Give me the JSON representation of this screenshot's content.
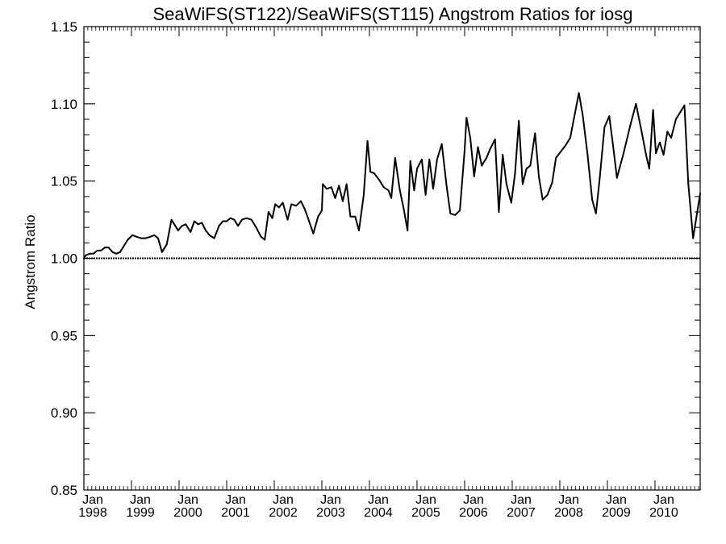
{
  "chart_data": {
    "type": "line",
    "title": "SeaWiFS(ST122)/SeaWiFS(ST115)  Angstrom Ratios for iosg",
    "xlabel": "",
    "ylabel": "Angstrom Ratio",
    "xlim": [
      1998.0,
      2010.95
    ],
    "ylim": [
      0.85,
      1.15
    ],
    "grid": false,
    "y_ticks": [
      {
        "value": 0.85,
        "label": "0.85"
      },
      {
        "value": 0.9,
        "label": "0.90"
      },
      {
        "value": 0.95,
        "label": "0.95"
      },
      {
        "value": 1.0,
        "label": "1.00"
      },
      {
        "value": 1.05,
        "label": "1.05"
      },
      {
        "value": 1.1,
        "label": "1.10"
      },
      {
        "value": 1.15,
        "label": "1.15"
      }
    ],
    "x_ticks": [
      {
        "value": 1998,
        "month": "Jan",
        "year": "1998"
      },
      {
        "value": 1999,
        "month": "Jan",
        "year": "1999"
      },
      {
        "value": 2000,
        "month": "Jan",
        "year": "2000"
      },
      {
        "value": 2001,
        "month": "Jan",
        "year": "2001"
      },
      {
        "value": 2002,
        "month": "Jan",
        "year": "2002"
      },
      {
        "value": 2003,
        "month": "Jan",
        "year": "2003"
      },
      {
        "value": 2004,
        "month": "Jan",
        "year": "2004"
      },
      {
        "value": 2005,
        "month": "Jan",
        "year": "2005"
      },
      {
        "value": 2006,
        "month": "Jan",
        "year": "2006"
      },
      {
        "value": 2007,
        "month": "Jan",
        "year": "2007"
      },
      {
        "value": 2008,
        "month": "Jan",
        "year": "2008"
      },
      {
        "value": 2009,
        "month": "Jan",
        "year": "2009"
      },
      {
        "value": 2010,
        "month": "Jan",
        "year": "2010"
      }
    ],
    "reference_line": {
      "y": 1.0,
      "style": "dotted"
    },
    "series": [
      {
        "color": "#000000",
        "points": [
          [
            1998.0,
            1.0
          ],
          [
            1998.04,
            1.002
          ],
          [
            1998.12,
            1.003
          ],
          [
            1998.2,
            1.003
          ],
          [
            1998.28,
            1.005
          ],
          [
            1998.36,
            1.005
          ],
          [
            1998.44,
            1.007
          ],
          [
            1998.52,
            1.007
          ],
          [
            1998.6,
            1.004
          ],
          [
            1998.68,
            1.003
          ],
          [
            1998.76,
            1.004
          ],
          [
            1998.84,
            1.008
          ],
          [
            1998.92,
            1.012
          ],
          [
            1999.02,
            1.015
          ],
          [
            1999.1,
            1.014
          ],
          [
            1999.2,
            1.013
          ],
          [
            1999.3,
            1.013
          ],
          [
            1999.4,
            1.014
          ],
          [
            1999.48,
            1.015
          ],
          [
            1999.56,
            1.013
          ],
          [
            1999.64,
            1.004
          ],
          [
            1999.74,
            1.009
          ],
          [
            1999.84,
            1.025
          ],
          [
            1999.9,
            1.022
          ],
          [
            1999.98,
            1.018
          ],
          [
            2000.06,
            1.021
          ],
          [
            2000.14,
            1.022
          ],
          [
            2000.24,
            1.017
          ],
          [
            2000.32,
            1.024
          ],
          [
            2000.4,
            1.022
          ],
          [
            2000.48,
            1.023
          ],
          [
            2000.56,
            1.018
          ],
          [
            2000.64,
            1.015
          ],
          [
            2000.74,
            1.013
          ],
          [
            2000.84,
            1.021
          ],
          [
            2000.92,
            1.024
          ],
          [
            2001.0,
            1.024
          ],
          [
            2001.08,
            1.026
          ],
          [
            2001.16,
            1.025
          ],
          [
            2001.24,
            1.021
          ],
          [
            2001.32,
            1.025
          ],
          [
            2001.42,
            1.026
          ],
          [
            2001.52,
            1.025
          ],
          [
            2001.62,
            1.02
          ],
          [
            2001.72,
            1.014
          ],
          [
            2001.8,
            1.012
          ],
          [
            2001.88,
            1.03
          ],
          [
            2001.96,
            1.026
          ],
          [
            2002.02,
            1.035
          ],
          [
            2002.1,
            1.033
          ],
          [
            2002.18,
            1.036
          ],
          [
            2002.28,
            1.025
          ],
          [
            2002.36,
            1.035
          ],
          [
            2002.46,
            1.034
          ],
          [
            2002.56,
            1.037
          ],
          [
            2002.64,
            1.032
          ],
          [
            2002.72,
            1.025
          ],
          [
            2002.82,
            1.016
          ],
          [
            2002.92,
            1.027
          ],
          [
            2003.0,
            1.031
          ],
          [
            2003.02,
            1.048
          ],
          [
            2003.1,
            1.045
          ],
          [
            2003.2,
            1.046
          ],
          [
            2003.28,
            1.039
          ],
          [
            2003.36,
            1.047
          ],
          [
            2003.44,
            1.037
          ],
          [
            2003.52,
            1.048
          ],
          [
            2003.6,
            1.027
          ],
          [
            2003.7,
            1.027
          ],
          [
            2003.78,
            1.018
          ],
          [
            2003.88,
            1.041
          ],
          [
            2003.96,
            1.076
          ],
          [
            2004.02,
            1.056
          ],
          [
            2004.1,
            1.055
          ],
          [
            2004.2,
            1.051
          ],
          [
            2004.3,
            1.046
          ],
          [
            2004.4,
            1.044
          ],
          [
            2004.46,
            1.039
          ],
          [
            2004.54,
            1.065
          ],
          [
            2004.64,
            1.044
          ],
          [
            2004.72,
            1.032
          ],
          [
            2004.8,
            1.018
          ],
          [
            2004.86,
            1.063
          ],
          [
            2004.94,
            1.044
          ],
          [
            2005.0,
            1.058
          ],
          [
            2005.1,
            1.064
          ],
          [
            2005.18,
            1.041
          ],
          [
            2005.26,
            1.064
          ],
          [
            2005.34,
            1.045
          ],
          [
            2005.42,
            1.064
          ],
          [
            2005.52,
            1.074
          ],
          [
            2005.62,
            1.047
          ],
          [
            2005.7,
            1.029
          ],
          [
            2005.8,
            1.028
          ],
          [
            2005.9,
            1.031
          ],
          [
            2006.0,
            1.07
          ],
          [
            2006.04,
            1.091
          ],
          [
            2006.12,
            1.078
          ],
          [
            2006.2,
            1.053
          ],
          [
            2006.28,
            1.072
          ],
          [
            2006.36,
            1.06
          ],
          [
            2006.46,
            1.065
          ],
          [
            2006.54,
            1.071
          ],
          [
            2006.64,
            1.077
          ],
          [
            2006.72,
            1.03
          ],
          [
            2006.8,
            1.067
          ],
          [
            2006.88,
            1.048
          ],
          [
            2006.98,
            1.036
          ],
          [
            2007.06,
            1.055
          ],
          [
            2007.14,
            1.089
          ],
          [
            2007.22,
            1.048
          ],
          [
            2007.3,
            1.058
          ],
          [
            2007.38,
            1.06
          ],
          [
            2007.48,
            1.081
          ],
          [
            2007.56,
            1.053
          ],
          [
            2007.64,
            1.038
          ],
          [
            2007.74,
            1.041
          ],
          [
            2007.84,
            1.049
          ],
          [
            2007.92,
            1.065
          ],
          [
            2008.02,
            1.069
          ],
          [
            2008.12,
            1.073
          ],
          [
            2008.22,
            1.078
          ],
          [
            2008.32,
            1.094
          ],
          [
            2008.4,
            1.107
          ],
          [
            2008.48,
            1.093
          ],
          [
            2008.58,
            1.068
          ],
          [
            2008.68,
            1.038
          ],
          [
            2008.76,
            1.029
          ],
          [
            2008.84,
            1.052
          ],
          [
            2008.94,
            1.085
          ],
          [
            2009.04,
            1.092
          ],
          [
            2009.12,
            1.073
          ],
          [
            2009.2,
            1.052
          ],
          [
            2009.34,
            1.068
          ],
          [
            2009.48,
            1.086
          ],
          [
            2009.6,
            1.1
          ],
          [
            2009.72,
            1.082
          ],
          [
            2009.82,
            1.066
          ],
          [
            2009.88,
            1.058
          ],
          [
            2009.96,
            1.096
          ],
          [
            2010.02,
            1.068
          ],
          [
            2010.1,
            1.075
          ],
          [
            2010.18,
            1.067
          ],
          [
            2010.26,
            1.082
          ],
          [
            2010.34,
            1.078
          ],
          [
            2010.44,
            1.09
          ],
          [
            2010.54,
            1.095
          ],
          [
            2010.62,
            1.099
          ],
          [
            2010.7,
            1.048
          ],
          [
            2010.8,
            1.013
          ],
          [
            2010.95,
            1.042
          ]
        ]
      }
    ]
  }
}
